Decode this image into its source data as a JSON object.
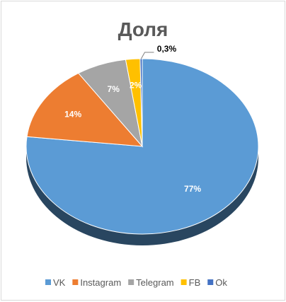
{
  "chart_data": {
    "type": "pie",
    "title": "Доля",
    "labels": [
      "VK",
      "Instagram",
      "Telegram",
      "FB",
      "Ok"
    ],
    "values": [
      77,
      14,
      7,
      2,
      0.3
    ],
    "data_labels": [
      "77%",
      "14%",
      "7%",
      "2%",
      "0,3%"
    ],
    "colors": [
      "#5b9bd5",
      "#ed7d31",
      "#a5a5a5",
      "#ffc000",
      "#4472c4"
    ],
    "legend_position": "bottom",
    "style": "3d"
  }
}
